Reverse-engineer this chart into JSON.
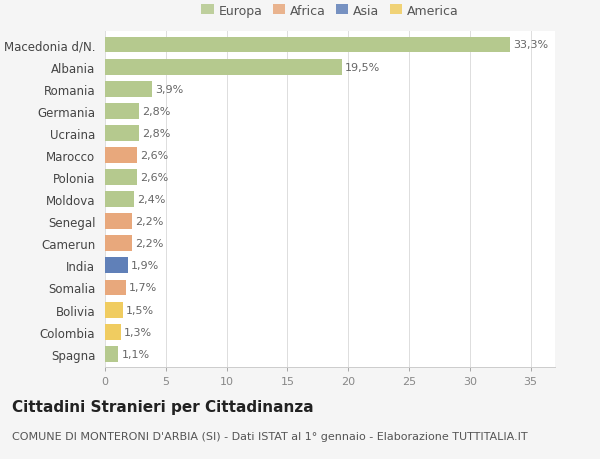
{
  "countries": [
    "Macedonia d/N.",
    "Albania",
    "Romania",
    "Germania",
    "Ucraina",
    "Marocco",
    "Polonia",
    "Moldova",
    "Senegal",
    "Camerun",
    "India",
    "Somalia",
    "Bolivia",
    "Colombia",
    "Spagna"
  ],
  "values": [
    33.3,
    19.5,
    3.9,
    2.8,
    2.8,
    2.6,
    2.6,
    2.4,
    2.2,
    2.2,
    1.9,
    1.7,
    1.5,
    1.3,
    1.1
  ],
  "labels": [
    "33,3%",
    "19,5%",
    "3,9%",
    "2,8%",
    "2,8%",
    "2,6%",
    "2,6%",
    "2,4%",
    "2,2%",
    "2,2%",
    "1,9%",
    "1,7%",
    "1,5%",
    "1,3%",
    "1,1%"
  ],
  "continents": [
    "Europa",
    "Europa",
    "Europa",
    "Europa",
    "Europa",
    "Africa",
    "Europa",
    "Europa",
    "Africa",
    "Africa",
    "Asia",
    "Africa",
    "America",
    "America",
    "Europa"
  ],
  "continent_colors": {
    "Europa": "#b5c98e",
    "Africa": "#e8a87c",
    "Asia": "#6080b8",
    "America": "#f0cc60"
  },
  "legend_order": [
    "Europa",
    "Africa",
    "Asia",
    "America"
  ],
  "xlim": [
    0,
    37
  ],
  "xticks": [
    0,
    5,
    10,
    15,
    20,
    25,
    30,
    35
  ],
  "title": "Cittadini Stranieri per Cittadinanza",
  "subtitle": "COMUNE DI MONTERONI D'ARBIA (SI) - Dati ISTAT al 1° gennaio - Elaborazione TUTTITALIA.IT",
  "background_color": "#f5f5f5",
  "plot_bg_color": "#ffffff",
  "grid_color": "#dddddd",
  "bar_height": 0.72,
  "label_fontsize": 8.0,
  "tick_fontsize": 8.0,
  "ytick_fontsize": 8.5,
  "title_fontsize": 11,
  "subtitle_fontsize": 8.0
}
